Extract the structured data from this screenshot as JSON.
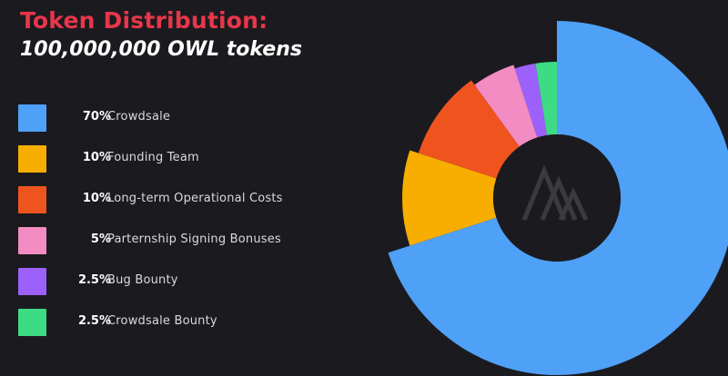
{
  "header": {
    "title": "Token Distribution:",
    "subtitle": "100,000,000 OWL tokens"
  },
  "chart_data": {
    "type": "pie",
    "title": "Token Distribution:",
    "subtitle": "100,000,000 OWL tokens",
    "legend_position": "left",
    "slices": [
      {
        "pct_label": "70%",
        "label": "Crowdsale",
        "value": 70,
        "color": "#4fa0f7"
      },
      {
        "pct_label": "10%",
        "label": "Founding Team",
        "value": 10,
        "color": "#f7ae00"
      },
      {
        "pct_label": "10%",
        "label": "Long-term Operational Costs",
        "value": 10,
        "color": "#f0541e"
      },
      {
        "pct_label": "5%",
        "label": "Parternship Signing Bonuses",
        "value": 5,
        "color": "#f28cc2"
      },
      {
        "pct_label": "2.5%",
        "label": "Bug Bounty",
        "value": 2.5,
        "color": "#9d61fb"
      },
      {
        "pct_label": "2.5%",
        "label": "Crowdsale Bounty",
        "value": 2.5,
        "color": "#3ddc84"
      }
    ]
  },
  "colors": {
    "background": "#1b1b1f",
    "center_hole": "#1b1b1f",
    "title": "#e8364a",
    "logo": "#3a3a40"
  },
  "icons": {
    "center_logo": "stacked-a-logo-icon"
  }
}
